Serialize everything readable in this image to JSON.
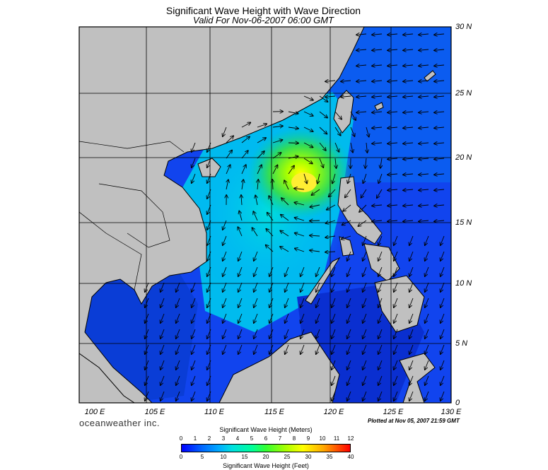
{
  "header": {
    "title": "Significant Wave Height with Wave Direction",
    "subtitle": "Valid For Nov-06-2007 06:00 GMT"
  },
  "map": {
    "lat_labels": [
      "30 N",
      "25 N",
      "20 N",
      "15 N",
      "10 N",
      "5 N",
      "0"
    ],
    "lon_labels": [
      "100 E",
      "105 E",
      "110 E",
      "115 E",
      "120 E",
      "125 E",
      "130 E"
    ],
    "lon_range": [
      100,
      130
    ],
    "lat_range": [
      0,
      30
    ],
    "land_color": "#c0c0c0",
    "grid": true,
    "arrow_direction": "mostly toward west/south-west with a cyclonic swirl near 18N 117E",
    "max_wave_height_location": "near 18N 117E"
  },
  "footer": {
    "brand": "oceanweather inc.",
    "plotted": "Plotted at Nov 05, 2007 21:59 GMT"
  },
  "legend": {
    "title_meters": "Significant Wave Height (Meters)",
    "title_feet": "Significant Wave Height (Feet)",
    "meter_ticks": [
      "0",
      "1",
      "2",
      "3",
      "4",
      "5",
      "6",
      "7",
      "8",
      "9",
      "10",
      "11",
      "12"
    ],
    "feet_ticks": [
      "0",
      "5",
      "10",
      "15",
      "20",
      "25",
      "30",
      "35",
      "40"
    ],
    "colors": [
      "#0000ff",
      "#0066ff",
      "#00aaff",
      "#00e0e0",
      "#00ff99",
      "#33ff33",
      "#aaff00",
      "#ffff00",
      "#ffaa00",
      "#ff0000"
    ]
  }
}
